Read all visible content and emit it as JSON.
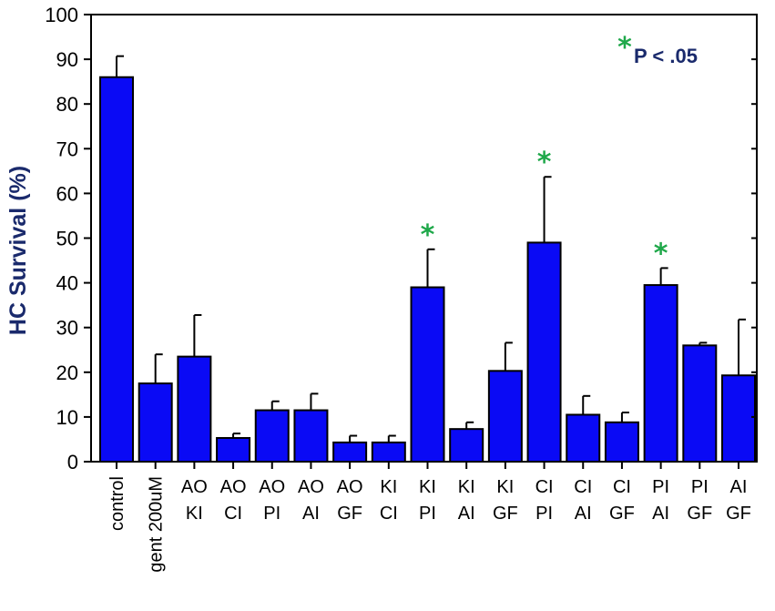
{
  "chart_data": {
    "type": "bar",
    "title": "",
    "xlabel": "",
    "ylabel": "HC Survival (%)",
    "ylim": [
      0,
      100
    ],
    "yticks": [
      0,
      10,
      20,
      30,
      40,
      50,
      60,
      70,
      80,
      90,
      100
    ],
    "categories": [
      [
        "control"
      ],
      [
        "gent 200uM"
      ],
      [
        "AO",
        "KI"
      ],
      [
        "AO",
        "CI"
      ],
      [
        "AO",
        "PI"
      ],
      [
        "AO",
        "AI"
      ],
      [
        "AO",
        "GF"
      ],
      [
        "KI",
        "CI"
      ],
      [
        "KI",
        "PI"
      ],
      [
        "KI",
        "AI"
      ],
      [
        "KI",
        "GF"
      ],
      [
        "CI",
        "PI"
      ],
      [
        "CI",
        "AI"
      ],
      [
        "CI",
        "GF"
      ],
      [
        "PI",
        "AI"
      ],
      [
        "PI",
        "GF"
      ],
      [
        "AI",
        "GF"
      ]
    ],
    "values": [
      86,
      17.5,
      23.5,
      5.3,
      11.5,
      11.5,
      4.3,
      4.3,
      39,
      7.3,
      20.3,
      49,
      10.5,
      8.8,
      39.5,
      26,
      19.3
    ],
    "errors": [
      4.7,
      6.5,
      9.3,
      1.0,
      2.0,
      3.7,
      1.5,
      1.5,
      8.5,
      1.5,
      6.3,
      14.7,
      4.2,
      2.2,
      3.8,
      0.6,
      12.5
    ],
    "significant": [
      false,
      false,
      false,
      false,
      false,
      false,
      false,
      false,
      true,
      false,
      false,
      true,
      false,
      false,
      true,
      false,
      false
    ],
    "legend": {
      "symbol": "*",
      "text": "P < .05",
      "position": "top-right"
    },
    "grid": false,
    "colors": {
      "bar": "#0a0af5",
      "star": "#1fa84a",
      "label": "#1a2a6c"
    }
  }
}
